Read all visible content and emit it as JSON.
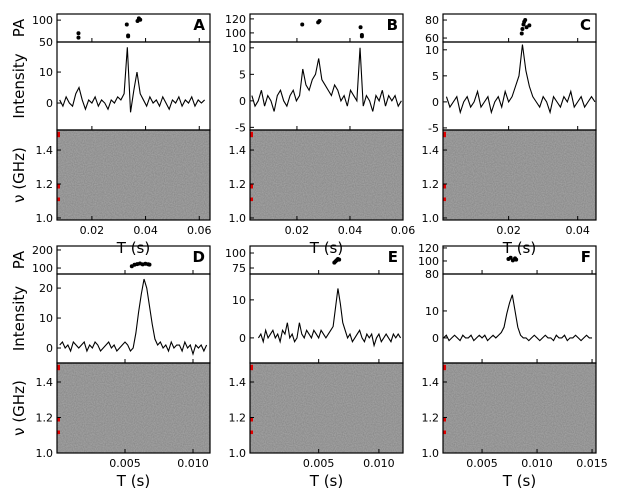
{
  "chart_data": [
    {
      "type": "pulse",
      "label": "A",
      "xlabel": "T (s)",
      "xlim": [
        0.007,
        0.064
      ],
      "xticks": [
        0.02,
        0.04,
        0.06
      ],
      "pa": {
        "ylabel": "PA",
        "ylim": [
          50,
          114
        ],
        "yticks": [
          50,
          100
        ],
        "x": [
          0.015,
          0.015,
          0.033,
          0.0335,
          0.0335,
          0.037,
          0.0375,
          0.038
        ],
        "values": [
          70,
          60,
          90,
          65,
          63,
          98,
          104,
          101
        ]
      },
      "intensity": {
        "ylabel": "Intensity",
        "ylim": [
          -8.7,
          19.7
        ],
        "yticks": [
          0,
          10
        ],
        "x": [
          0.008,
          0.0092,
          0.0104,
          0.0116,
          0.0128,
          0.014,
          0.0152,
          0.0164,
          0.0176,
          0.0188,
          0.02,
          0.0212,
          0.0224,
          0.0236,
          0.0248,
          0.026,
          0.0272,
          0.0284,
          0.0296,
          0.0308,
          0.032,
          0.0332,
          0.0344,
          0.0356,
          0.0368,
          0.038,
          0.0392,
          0.0404,
          0.0416,
          0.0428,
          0.044,
          0.0452,
          0.0464,
          0.0476,
          0.0488,
          0.05,
          0.0512,
          0.0524,
          0.0536,
          0.0548,
          0.056,
          0.0572,
          0.0584,
          0.0596,
          0.0608,
          0.062
        ],
        "values": [
          1,
          -1,
          2,
          0,
          -1,
          3,
          5,
          1,
          -2,
          1,
          0,
          2,
          -1,
          1,
          0,
          -2,
          1,
          0,
          2,
          1,
          3,
          18,
          -3,
          4,
          10,
          3,
          1,
          -1,
          2,
          0,
          1,
          -1,
          2,
          0,
          -2,
          1,
          0,
          2,
          -1,
          1,
          0,
          2,
          -1,
          1,
          0,
          1
        ]
      },
      "spectrum": {
        "ylabel": "ν (GHz)",
        "ylim": [
          0.988,
          1.518
        ],
        "yticks": [
          {
            "value": 1.0,
            "label": "1.0"
          },
          {
            "value": 1.2,
            "label": "1.2"
          },
          {
            "value": 1.4,
            "label": "1.4"
          }
        ]
      }
    },
    {
      "type": "pulse",
      "label": "B",
      "xlabel": "T (s)",
      "xlim": [
        0.0023,
        0.06
      ],
      "xticks": [
        0.02,
        0.04,
        0.06
      ],
      "pa": {
        "ylim": [
          87,
          127
        ],
        "yticks": [
          100,
          120
        ],
        "x": [
          0.022,
          0.028,
          0.0285,
          0.044,
          0.0445,
          0.0445
        ],
        "values": [
          112,
          115,
          117,
          108,
          97,
          95
        ]
      },
      "intensity": {
        "ylim": [
          -5.5,
          11.1
        ],
        "yticks": [
          -5,
          0,
          5,
          10
        ],
        "x": [
          0.003,
          0.0042,
          0.0054,
          0.0066,
          0.0078,
          0.009,
          0.0102,
          0.0114,
          0.0126,
          0.0138,
          0.015,
          0.0162,
          0.0174,
          0.0186,
          0.0198,
          0.021,
          0.0222,
          0.0234,
          0.0246,
          0.0258,
          0.027,
          0.0282,
          0.0294,
          0.0306,
          0.0318,
          0.033,
          0.0342,
          0.0354,
          0.0366,
          0.0378,
          0.039,
          0.0402,
          0.0414,
          0.0426,
          0.0438,
          0.045,
          0.0462,
          0.0474,
          0.0486,
          0.0498,
          0.051,
          0.0522,
          0.0534,
          0.0546,
          0.0558,
          0.057,
          0.0582,
          0.0594
        ],
        "values": [
          1,
          -1,
          0,
          2,
          -1,
          1,
          0,
          -2,
          1,
          2,
          0,
          -1,
          1,
          2,
          0,
          1,
          6,
          3,
          2,
          4,
          5,
          8,
          4,
          3,
          2,
          1,
          3,
          2,
          0,
          1,
          -1,
          2,
          1,
          0,
          10,
          -1,
          1,
          0,
          -2,
          1,
          0,
          2,
          -1,
          1,
          0,
          1,
          -1,
          0
        ]
      },
      "spectrum": {
        "ylim": [
          0.988,
          1.518
        ],
        "yticks": [
          {
            "value": 1.0,
            "label": "1.0"
          },
          {
            "value": 1.2,
            "label": "1.2"
          },
          {
            "value": 1.4,
            "label": "1.4"
          }
        ]
      }
    },
    {
      "type": "pulse",
      "label": "C",
      "xlabel": "T (s)",
      "xlim": [
        0.001,
        0.0453
      ],
      "xticks": [
        0.02,
        0.04
      ],
      "pa": {
        "ylim": [
          55.6,
          86.7
        ],
        "yticks": [
          60,
          80
        ],
        "x": [
          0.0238,
          0.024,
          0.0243,
          0.0245,
          0.0248,
          0.0252,
          0.026
        ],
        "values": [
          65,
          70,
          75,
          78,
          80,
          72,
          74
        ]
      },
      "intensity": {
        "ylim": [
          -5.4,
          11.5
        ],
        "yticks": [
          -5,
          0,
          5,
          10
        ],
        "x": [
          0.002,
          0.003,
          0.004,
          0.005,
          0.006,
          0.007,
          0.008,
          0.009,
          0.01,
          0.011,
          0.012,
          0.013,
          0.014,
          0.015,
          0.016,
          0.017,
          0.018,
          0.019,
          0.02,
          0.021,
          0.022,
          0.023,
          0.024,
          0.025,
          0.026,
          0.027,
          0.028,
          0.029,
          0.03,
          0.031,
          0.032,
          0.033,
          0.034,
          0.035,
          0.036,
          0.037,
          0.038,
          0.039,
          0.04,
          0.041,
          0.042,
          0.043,
          0.044,
          0.045
        ],
        "values": [
          1,
          -1,
          0,
          1,
          -2,
          0,
          1,
          -1,
          0,
          2,
          -1,
          0,
          1,
          -2,
          0,
          1,
          -1,
          2,
          0,
          1,
          3,
          5,
          11,
          6,
          3,
          1,
          0,
          -1,
          1,
          0,
          -2,
          1,
          0,
          -1,
          1,
          0,
          2,
          -1,
          0,
          1,
          -1,
          0,
          1,
          0
        ]
      },
      "spectrum": {
        "ylim": [
          0.988,
          1.518
        ],
        "yticks": [
          {
            "value": 1.0,
            "label": "1.0"
          },
          {
            "value": 1.2,
            "label": "1.2"
          },
          {
            "value": 1.4,
            "label": "1.4"
          }
        ]
      }
    },
    {
      "type": "pulse",
      "label": "D",
      "xlabel": "T (s)",
      "xlim": [
        0,
        0.01125
      ],
      "xticks": [
        0.005,
        {
          "value": 0.01,
          "label": "0.010"
        }
      ],
      "pa": {
        "ylabel": "PA",
        "ylim": [
          67,
          222
        ],
        "yticks": [
          100,
          200
        ],
        "x": [
          0.0055,
          0.0057,
          0.0059,
          0.0061,
          0.0063,
          0.0065,
          0.0067,
          0.0068
        ],
        "values": [
          110,
          118,
          122,
          125,
          120,
          124,
          121,
          119
        ]
      },
      "intensity": {
        "ylabel": "Intensity",
        "ylim": [
          -5,
          24.7
        ],
        "yticks": [
          0,
          10,
          20
        ],
        "x": [
          0.0002,
          0.0004,
          0.0006,
          0.0008,
          0.001,
          0.0012,
          0.0014,
          0.0016,
          0.0018,
          0.002,
          0.0022,
          0.0024,
          0.0026,
          0.0028,
          0.003,
          0.0032,
          0.0034,
          0.0036,
          0.0038,
          0.004,
          0.0042,
          0.0044,
          0.0046,
          0.0048,
          0.005,
          0.0052,
          0.0054,
          0.0056,
          0.0058,
          0.006,
          0.0062,
          0.0064,
          0.0066,
          0.0068,
          0.007,
          0.0072,
          0.0074,
          0.0076,
          0.0078,
          0.008,
          0.0082,
          0.0084,
          0.0086,
          0.0088,
          0.009,
          0.0092,
          0.0094,
          0.0096,
          0.0098,
          0.01,
          0.0102,
          0.0104,
          0.0106,
          0.0108,
          0.011
        ],
        "values": [
          1,
          2,
          0,
          1,
          -1,
          2,
          1,
          0,
          1,
          2,
          -1,
          1,
          0,
          2,
          1,
          -1,
          0,
          1,
          2,
          0,
          1,
          -1,
          0,
          1,
          2,
          1,
          -1,
          0,
          5,
          12,
          18,
          23,
          20,
          14,
          8,
          3,
          1,
          2,
          0,
          1,
          -1,
          2,
          0,
          1,
          1,
          -1,
          2,
          0,
          1,
          -2,
          1,
          0,
          1,
          -1,
          1
        ]
      },
      "spectrum": {
        "ylabel": "ν (GHz)",
        "ylim": [
          1.0,
          1.507
        ],
        "yticks": [
          {
            "value": 1.0,
            "label": "1.0"
          },
          {
            "value": 1.2,
            "label": "1.2"
          },
          {
            "value": 1.4,
            "label": "1.4"
          }
        ]
      }
    },
    {
      "type": "pulse",
      "label": "E",
      "xlabel": "T (s)",
      "xlim": [
        -0.0007,
        0.012
      ],
      "xticks": [
        0.005,
        {
          "value": 0.01,
          "label": "0.010"
        }
      ],
      "pa": {
        "ylim": [
          65,
          111.7
        ],
        "yticks": [
          75,
          100
        ],
        "x": [
          0.0063,
          0.0064,
          0.0065,
          0.0066,
          0.0067
        ],
        "values": [
          84,
          86,
          88,
          90,
          89
        ]
      },
      "intensity": {
        "ylim": [
          -6.6,
          16.8
        ],
        "yticks": [
          0,
          10
        ],
        "x": [
          0,
          0.0002,
          0.0004,
          0.0006,
          0.0008,
          0.001,
          0.0012,
          0.0014,
          0.0016,
          0.0018,
          0.002,
          0.0022,
          0.0024,
          0.0026,
          0.0028,
          0.003,
          0.0032,
          0.0034,
          0.0036,
          0.0038,
          0.004,
          0.0042,
          0.0044,
          0.0046,
          0.0048,
          0.005,
          0.0052,
          0.0054,
          0.0056,
          0.0058,
          0.006,
          0.0062,
          0.0064,
          0.0066,
          0.0068,
          0.007,
          0.0072,
          0.0074,
          0.0076,
          0.0078,
          0.008,
          0.0082,
          0.0084,
          0.0086,
          0.0088,
          0.009,
          0.0092,
          0.0094,
          0.0096,
          0.0098,
          0.01,
          0.0102,
          0.0104,
          0.0106,
          0.0108,
          0.011,
          0.0112,
          0.0114,
          0.0116,
          0.0118
        ],
        "values": [
          0,
          1,
          -1,
          2,
          0,
          1,
          2,
          0,
          1,
          -1,
          2,
          1,
          4,
          0,
          1,
          -1,
          0,
          4,
          1,
          0,
          2,
          1,
          0,
          2,
          1,
          0,
          2,
          1,
          0,
          1,
          2,
          3,
          8,
          13,
          9,
          4,
          2,
          0,
          1,
          -1,
          0,
          1,
          2,
          0,
          -1,
          1,
          0,
          1,
          -2,
          0,
          1,
          -1,
          0,
          1,
          0,
          -1,
          1,
          0,
          1,
          0
        ]
      },
      "spectrum": {
        "ylim": [
          1.0,
          1.507
        ],
        "yticks": [
          {
            "value": 1.0,
            "label": "1.0"
          },
          {
            "value": 1.2,
            "label": "1.2"
          },
          {
            "value": 1.4,
            "label": "1.4"
          }
        ]
      }
    },
    {
      "type": "pulse",
      "label": "F",
      "xlabel": "T (s)",
      "xlim": [
        0.00145,
        0.01536
      ],
      "xticks": [
        0.005,
        {
          "value": 0.01,
          "label": "0.010"
        },
        0.015
      ],
      "pa": {
        "ylim": [
          80,
          123
        ],
        "yticks": [
          80,
          100,
          120
        ],
        "x": [
          0.0074,
          0.0076,
          0.0078,
          0.008,
          0.0081
        ],
        "values": [
          103,
          105,
          101,
          104,
          102
        ]
      },
      "intensity": {
        "ylim": [
          -9.3,
          23.7
        ],
        "yticks": [
          0,
          10
        ],
        "x": [
          0.0015,
          0.00175,
          0.002,
          0.00225,
          0.0025,
          0.00275,
          0.003,
          0.00325,
          0.0035,
          0.00375,
          0.004,
          0.00425,
          0.0045,
          0.00475,
          0.005,
          0.00525,
          0.0055,
          0.00575,
          0.006,
          0.00625,
          0.0065,
          0.00675,
          0.007,
          0.00725,
          0.0075,
          0.00775,
          0.008,
          0.00825,
          0.0085,
          0.00875,
          0.009,
          0.00925,
          0.0095,
          0.00975,
          0.01,
          0.01025,
          0.0105,
          0.01075,
          0.011,
          0.01125,
          0.0115,
          0.01175,
          0.012,
          0.01225,
          0.0125,
          0.01275,
          0.013,
          0.01325,
          0.0135,
          0.01375,
          0.014,
          0.01425,
          0.0145,
          0.01475,
          0.015
        ],
        "values": [
          0,
          1,
          -1,
          0,
          1,
          0,
          -1,
          1,
          0,
          0,
          1,
          -1,
          0,
          1,
          0,
          1,
          -1,
          0,
          1,
          0,
          1,
          2,
          4,
          9,
          13,
          16,
          10,
          4,
          1,
          0,
          0,
          -1,
          0,
          1,
          0,
          -1,
          0,
          1,
          0,
          0,
          -1,
          1,
          0,
          0,
          1,
          -1,
          0,
          0,
          1,
          0,
          -1,
          0,
          1,
          0,
          0
        ]
      },
      "spectrum": {
        "ylim": [
          1.0,
          1.507
        ],
        "yticks": [
          {
            "value": 1.0,
            "label": "1.0"
          },
          {
            "value": 1.2,
            "label": "1.2"
          },
          {
            "value": 1.4,
            "label": "1.4"
          }
        ]
      }
    }
  ]
}
